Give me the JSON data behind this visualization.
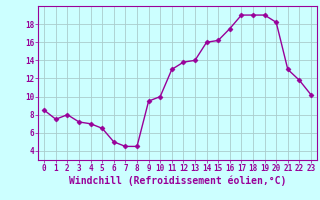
{
  "x": [
    0,
    1,
    2,
    3,
    4,
    5,
    6,
    7,
    8,
    9,
    10,
    11,
    12,
    13,
    14,
    15,
    16,
    17,
    18,
    19,
    20,
    21,
    22,
    23
  ],
  "y": [
    8.5,
    7.5,
    8.0,
    7.2,
    7.0,
    6.5,
    5.0,
    4.5,
    4.5,
    9.5,
    10.0,
    13.0,
    13.8,
    14.0,
    16.0,
    16.2,
    17.5,
    19.0,
    19.0,
    19.0,
    18.2,
    13.0,
    11.8,
    10.2
  ],
  "line_color": "#990099",
  "marker": "D",
  "marker_size": 2.5,
  "background_color": "#ccffff",
  "grid_color": "#aacccc",
  "xlabel": "Windchill (Refroidissement éolien,°C)",
  "xlim": [
    -0.5,
    23.5
  ],
  "ylim": [
    3,
    20
  ],
  "yticks": [
    4,
    6,
    8,
    10,
    12,
    14,
    16,
    18
  ],
  "xticks": [
    0,
    1,
    2,
    3,
    4,
    5,
    6,
    7,
    8,
    9,
    10,
    11,
    12,
    13,
    14,
    15,
    16,
    17,
    18,
    19,
    20,
    21,
    22,
    23
  ],
  "tick_label_fontsize": 5.5,
  "xlabel_fontsize": 7.0,
  "line_width": 1.0
}
